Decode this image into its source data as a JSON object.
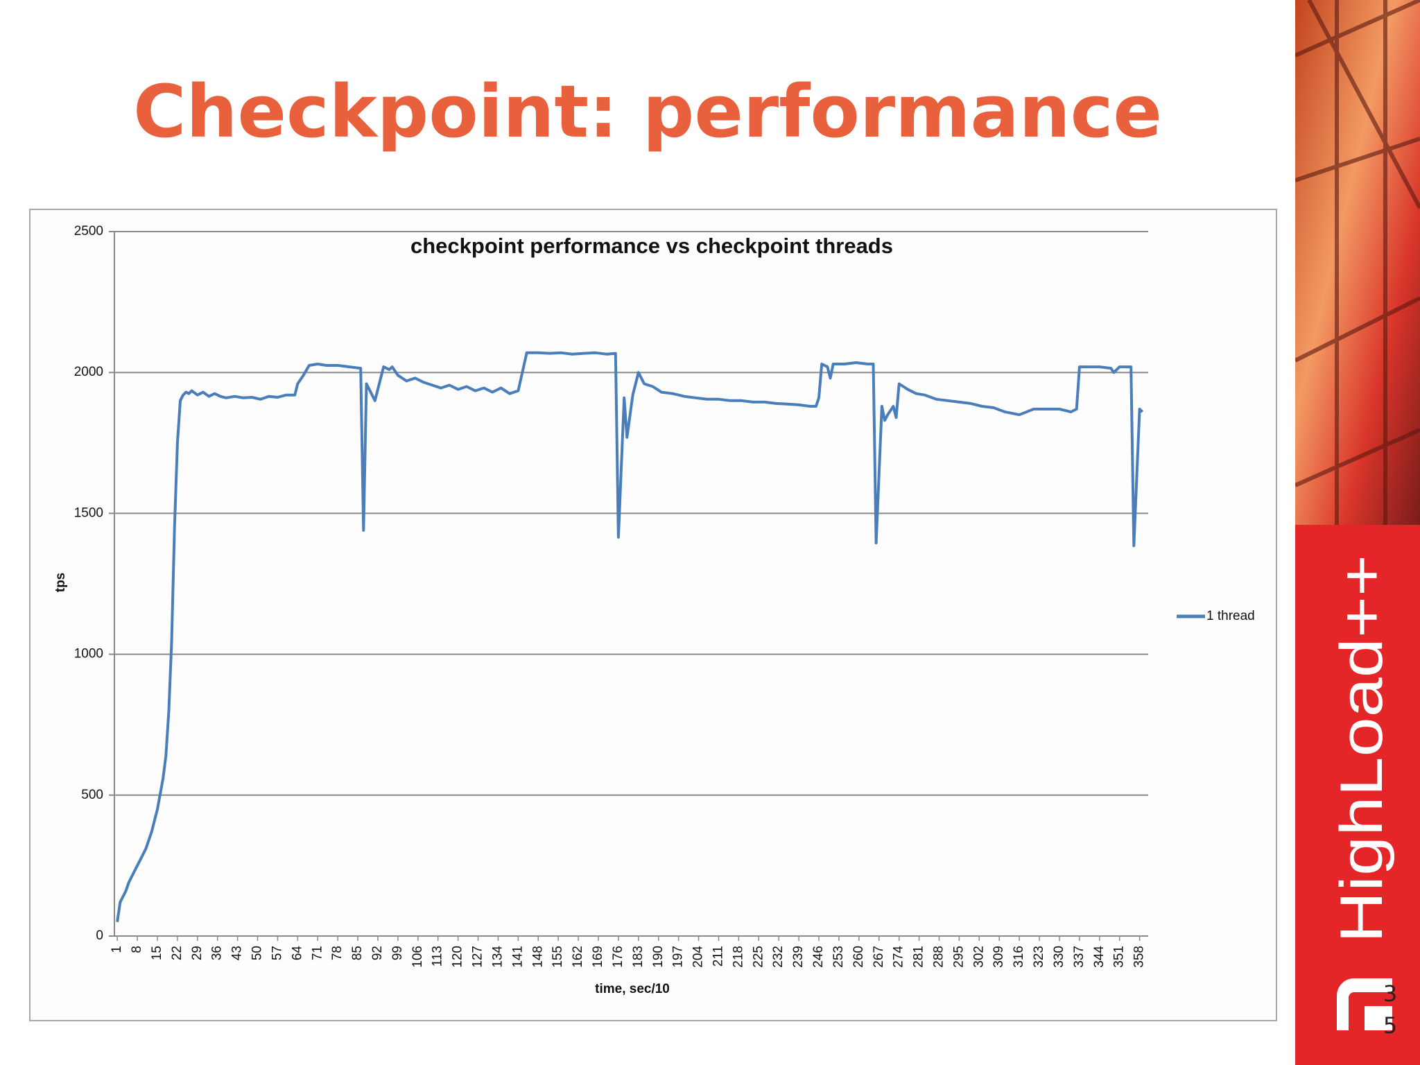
{
  "slide": {
    "title": "Checkpoint: performance",
    "brand": "HighLoad++",
    "page_number": "35"
  },
  "chart_data": {
    "type": "line",
    "title": "checkpoint performance vs checkpoint threads",
    "x_label": "time, sec/10",
    "y_label": "tps",
    "x": [
      1,
      2,
      4,
      5,
      7,
      9,
      11,
      13,
      15,
      17,
      18,
      19,
      20,
      21,
      22,
      23,
      24,
      25,
      26,
      27,
      29,
      31,
      33,
      35,
      37,
      39,
      42,
      45,
      48,
      51,
      54,
      57,
      60,
      63,
      64,
      66,
      68,
      71,
      74,
      78,
      82,
      86,
      87,
      88,
      91,
      94,
      96,
      97,
      99,
      102,
      105,
      108,
      111,
      114,
      117,
      120,
      123,
      126,
      129,
      132,
      135,
      138,
      141,
      144,
      148,
      152,
      156,
      160,
      164,
      168,
      172,
      175,
      176,
      178,
      179,
      181,
      183,
      185,
      188,
      191,
      195,
      199,
      203,
      207,
      211,
      215,
      219,
      223,
      227,
      231,
      235,
      239,
      243,
      245,
      246,
      247,
      249,
      250,
      251,
      255,
      259,
      263,
      265,
      266,
      268,
      269,
      270,
      272,
      273,
      274,
      277,
      280,
      283,
      287,
      291,
      295,
      299,
      303,
      307,
      311,
      316,
      321,
      325,
      330,
      334,
      336,
      337,
      340,
      344,
      348,
      349,
      351,
      355,
      356,
      358,
      359
    ],
    "series": [
      {
        "name": "1 thread",
        "color": "#4a7ebb",
        "values": [
          50,
          120,
          160,
          190,
          230,
          270,
          310,
          370,
          450,
          560,
          640,
          800,
          1050,
          1450,
          1750,
          1900,
          1920,
          1930,
          1925,
          1935,
          1920,
          1930,
          1915,
          1925,
          1915,
          1910,
          1915,
          1910,
          1912,
          1905,
          1915,
          1912,
          1920,
          1920,
          1960,
          1990,
          2025,
          2030,
          2025,
          2025,
          2020,
          2015,
          1440,
          1960,
          1900,
          2020,
          2010,
          2020,
          1990,
          1970,
          1980,
          1965,
          1955,
          1945,
          1955,
          1940,
          1950,
          1935,
          1945,
          1930,
          1945,
          1925,
          1935,
          2070,
          2070,
          2068,
          2070,
          2065,
          2068,
          2070,
          2065,
          2068,
          1415,
          1910,
          1770,
          1920,
          2000,
          1960,
          1950,
          1930,
          1925,
          1915,
          1910,
          1905,
          1905,
          1900,
          1900,
          1895,
          1895,
          1890,
          1888,
          1885,
          1880,
          1880,
          1910,
          2030,
          2020,
          1980,
          2030,
          2030,
          2035,
          2030,
          2030,
          1395,
          1880,
          1830,
          1850,
          1880,
          1840,
          1960,
          1940,
          1925,
          1920,
          1905,
          1900,
          1895,
          1890,
          1880,
          1875,
          1860,
          1850,
          1870,
          1870,
          1870,
          1860,
          1870,
          2020,
          2020,
          2020,
          2015,
          2000,
          2020,
          2020,
          1385,
          1870,
          1860
        ]
      }
    ],
    "xlim": [
      0,
      361
    ],
    "xticks": [
      1,
      8,
      15,
      22,
      29,
      36,
      43,
      50,
      57,
      64,
      71,
      78,
      85,
      92,
      99,
      106,
      113,
      120,
      127,
      134,
      141,
      148,
      155,
      162,
      169,
      176,
      183,
      190,
      197,
      204,
      211,
      218,
      225,
      232,
      239,
      246,
      253,
      260,
      267,
      274,
      281,
      288,
      295,
      302,
      309,
      316,
      323,
      330,
      337,
      344,
      351,
      358
    ],
    "ylim": [
      0,
      2500
    ],
    "yticks": [
      0,
      500,
      1000,
      1500,
      2000,
      2500
    ],
    "grid": true,
    "legend": "right"
  }
}
